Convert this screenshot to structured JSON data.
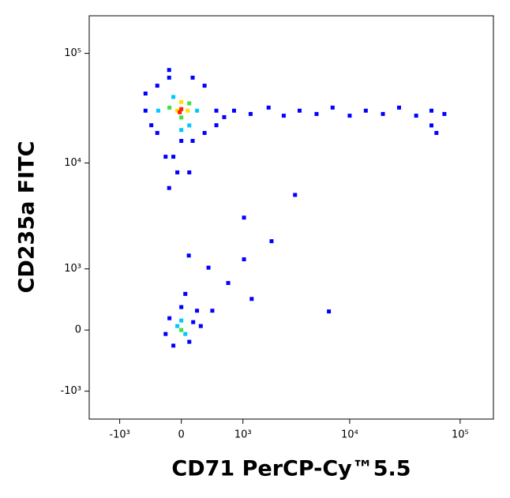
{
  "chart_data": {
    "type": "scatter",
    "xlabel": "CD71 PerCP-Cy™5.5",
    "ylabel": "CD235a FITC",
    "xscale": "biexponential",
    "yscale": "biexponential",
    "xlim": [
      -2000,
      200000
    ],
    "ylim": [
      -1900,
      220000
    ],
    "xticks": [
      {
        "value": -1000,
        "label": "-10³"
      },
      0,
      {
        "value": 1000,
        "label": "10³"
      },
      {
        "value": 10000,
        "label": "10⁴"
      },
      {
        "value": 100000,
        "label": "10⁵"
      }
    ],
    "yticks": [
      {
        "value": -1000,
        "label": "-10³"
      },
      0,
      {
        "value": 1000,
        "label": "10³"
      },
      {
        "value": 10000,
        "label": "10⁴"
      },
      {
        "value": 100000,
        "label": "10⁵"
      }
    ],
    "series": [
      {
        "color": "#0000ff",
        "x": [
          -490,
          -313,
          -154,
          143,
          302,
          478,
          610,
          -313,
          143,
          302,
          -154,
          -490,
          478,
          -400,
          0,
          -100,
          -50,
          -154,
          100,
          -200,
          800,
          1200,
          1800,
          2500,
          3500,
          5000,
          7000,
          10000,
          14000,
          20000,
          28000,
          40000,
          55000,
          72000,
          61000,
          55000,
          358,
          684,
          1026,
          1920,
          1230,
          6480,
          3180,
          1026,
          94,
          415,
          -150,
          150,
          -200,
          100,
          0,
          200,
          -100,
          250,
          50
        ],
        "values": [
          30000,
          50700,
          60000,
          60000,
          50700,
          30000,
          26200,
          18800,
          15900,
          18800,
          70500,
          43000,
          22100,
          22100,
          15900,
          11400,
          8200,
          5900,
          8200,
          11400,
          30000,
          28000,
          32000,
          27000,
          30000,
          28000,
          32000,
          27000,
          30000,
          28000,
          32000,
          27000,
          30000,
          28000,
          18800,
          22000,
          1030,
          693,
          1256,
          1890,
          420,
          240,
          5100,
          3150,
          1370,
          250,
          150,
          100,
          -50,
          -150,
          300,
          250,
          -200,
          50,
          500
        ]
      },
      {
        "color": "#00c8ff",
        "x": [
          -300,
          200,
          -100,
          100,
          0,
          -50,
          50,
          0
        ],
        "values": [
          30000,
          30000,
          40000,
          22000,
          20000,
          50,
          -50,
          120
        ]
      },
      {
        "color": "#40e040",
        "x": [
          -150,
          100,
          0,
          0
        ],
        "values": [
          32000,
          35000,
          26000,
          0
        ]
      },
      {
        "color": "#ffe000",
        "x": [
          -50,
          80,
          0
        ],
        "values": [
          30000,
          30000,
          36000
        ]
      },
      {
        "color": "#ff2000",
        "x": [
          0,
          -20
        ],
        "values": [
          31000,
          29000
        ]
      }
    ]
  }
}
